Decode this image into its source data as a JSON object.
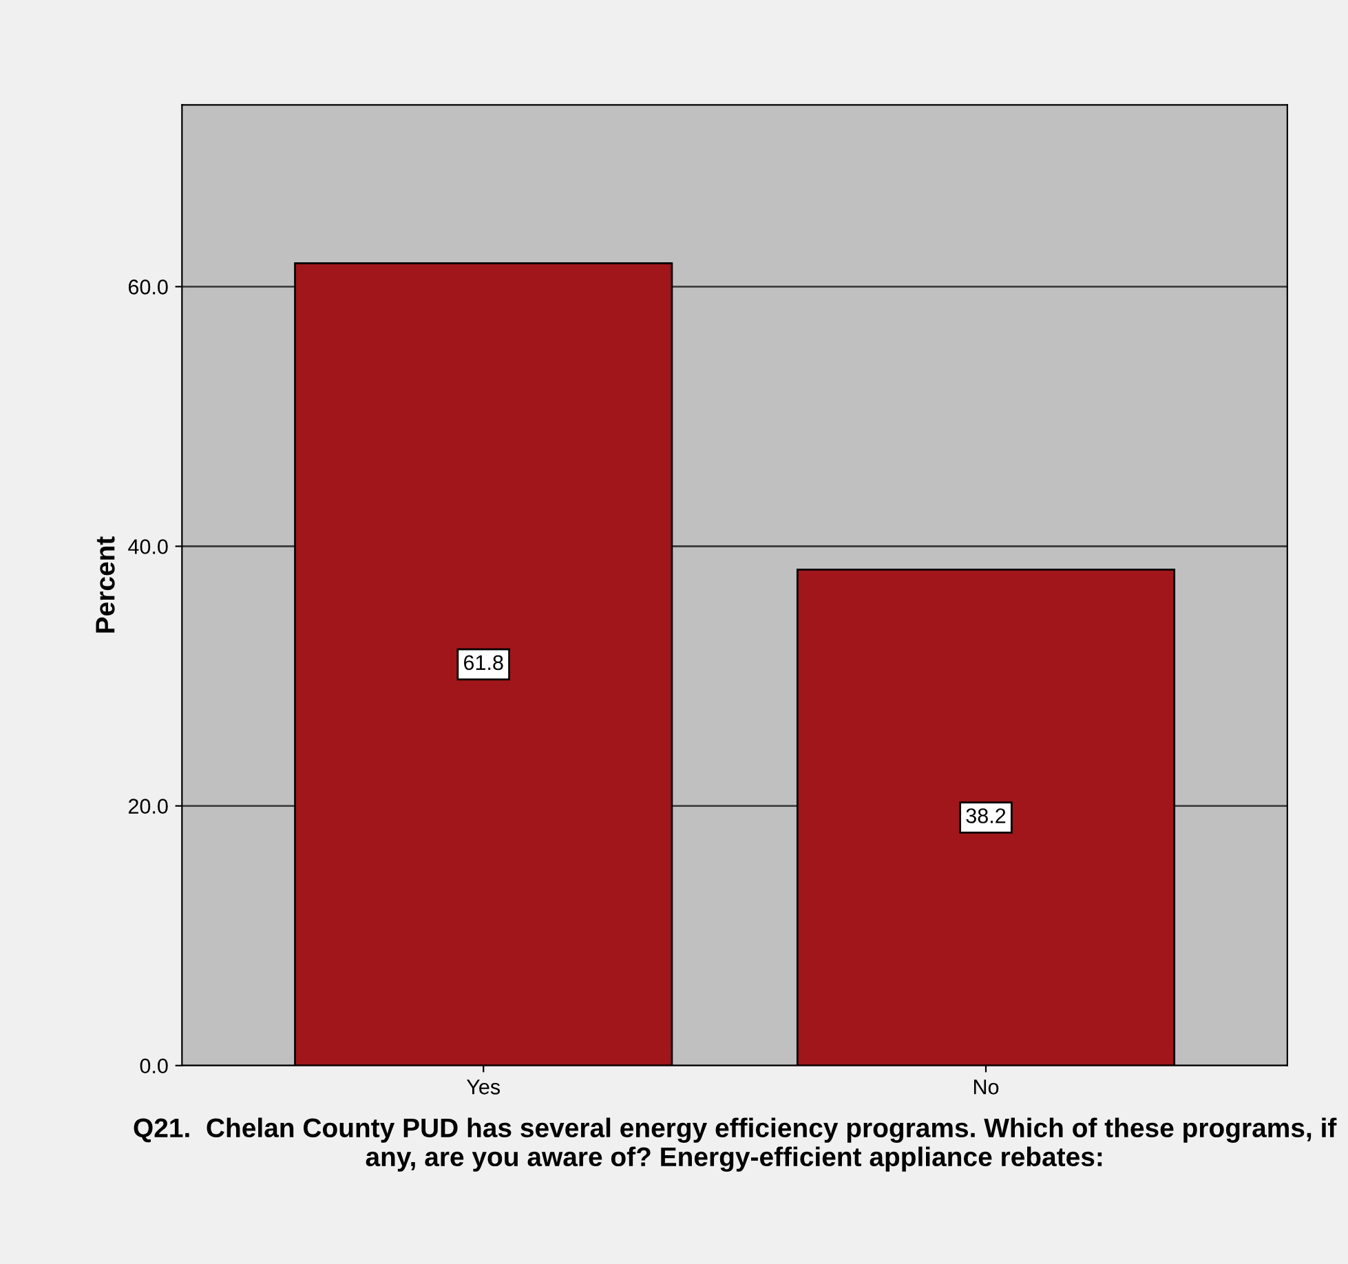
{
  "chart_data": {
    "type": "bar",
    "ylabel": "Percent",
    "xlabel": "Q21.  Chelan County PUD has several energy efficiency programs. Which of these programs, if any, are you aware of? Energy-efficient appliance rebates:",
    "categories": [
      "Yes",
      "No"
    ],
    "values": [
      61.8,
      38.2
    ],
    "color": "#a0161a",
    "ylim": [
      0,
      74
    ],
    "yticks": [
      {
        "value": 0,
        "label": "0.0"
      },
      {
        "value": 20,
        "label": "20.0"
      },
      {
        "value": 40,
        "label": "40.0"
      },
      {
        "value": 60,
        "label": "60.0"
      }
    ],
    "grid": "y",
    "data_labels": true
  }
}
